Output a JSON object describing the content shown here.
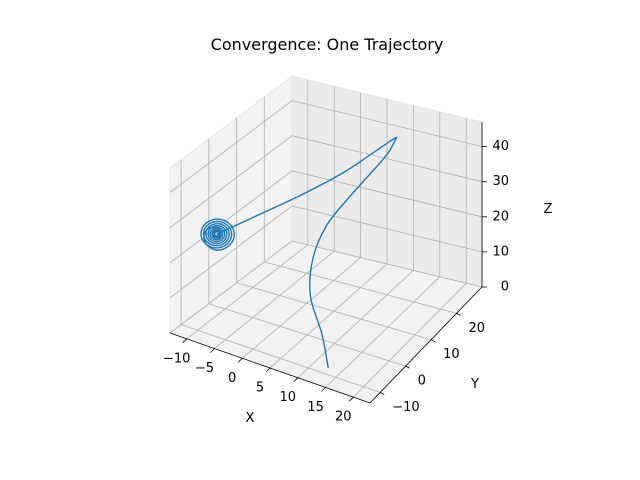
{
  "chart_data": {
    "type": "line",
    "projection": "3d",
    "title": "Convergence: One Trajectory",
    "xlabel": "X",
    "ylabel": "Y",
    "zlabel": "Z",
    "xlim": [
      -13,
      23
    ],
    "ylim": [
      -14,
      30
    ],
    "zlim": [
      0,
      47
    ],
    "x_ticks": [
      -10,
      -5,
      0,
      5,
      10,
      15,
      20
    ],
    "y_ticks": [
      -10,
      0,
      10,
      20
    ],
    "z_ticks": [
      0,
      10,
      20,
      30,
      40
    ],
    "x_tick_labels": [
      "−10",
      "−5",
      "0",
      "5",
      "10",
      "15",
      "20"
    ],
    "y_tick_labels": [
      "−10",
      "0",
      "10",
      "20"
    ],
    "z_tick_labels": [
      "0",
      "10",
      "20",
      "30",
      "40"
    ],
    "grid": true,
    "color": "#1f77b4",
    "series": [
      {
        "x": [
          15,
          12,
          8,
          6,
          6,
          7.5,
          9,
          10,
          9.5,
          8,
          5,
          1,
          -3,
          -7,
          -9.5
        ],
        "y": [
          -13,
          -9,
          -5,
          0,
          5,
          10,
          15,
          20,
          24,
          27,
          26,
          22,
          14,
          4,
          -4
        ],
        "z": [
          5,
          10,
          16,
          22,
          28,
          33,
          37,
          40,
          41,
          39,
          35,
          30,
          27,
          25,
          24
        ]
      }
    ],
    "spiral_center": [
      -9.5,
      -4,
      24
    ]
  }
}
